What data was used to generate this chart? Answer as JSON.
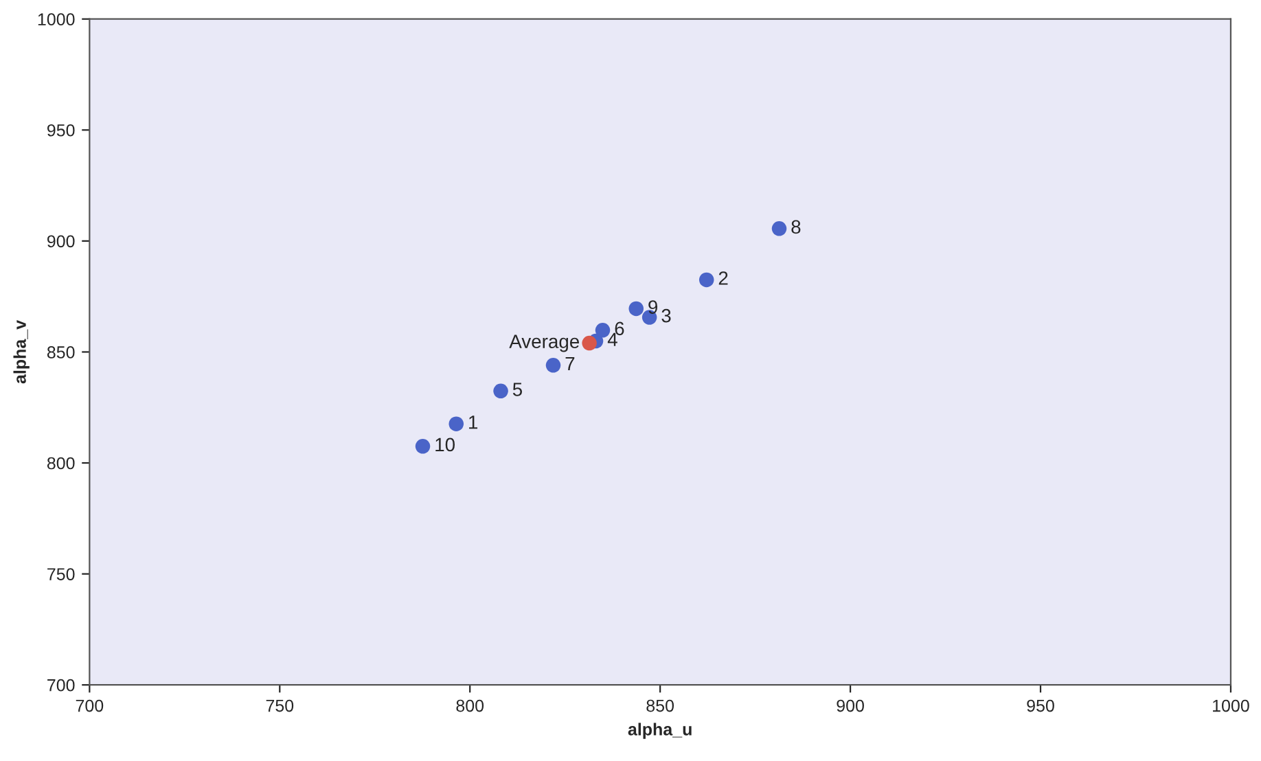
{
  "chart_data": {
    "type": "scatter",
    "xlabel": "alpha_u",
    "ylabel": "alpha_v",
    "xlim": [
      700,
      1000
    ],
    "xticks": [
      700,
      750,
      800,
      850,
      900,
      950,
      1000
    ],
    "ylim": [
      700,
      1000
    ],
    "yticks": [
      700,
      750,
      800,
      850,
      900,
      950,
      1000
    ],
    "grid": false,
    "marker": "circle",
    "series": [
      {
        "color": "#4a64c8",
        "x": [
          796.4,
          862.2,
          847.2,
          833.1,
          808.1,
          834.9,
          821.9,
          881.3,
          843.7,
          787.6
        ],
        "values": [
          817.6,
          882.5,
          865.6,
          854.9,
          832.4,
          859.8,
          844.0,
          905.6,
          869.5,
          807.5
        ]
      },
      {
        "name": "Average",
        "color": "#d9574a",
        "x": [
          831.4
        ],
        "values": [
          854.0
        ]
      }
    ],
    "annotations": [
      {
        "text": "1",
        "x": 796.4,
        "y": 817.6
      },
      {
        "text": "2",
        "x": 862.2,
        "y": 882.5
      },
      {
        "text": "3",
        "x": 847.2,
        "y": 865.6
      },
      {
        "text": "4",
        "x": 833.1,
        "y": 854.9
      },
      {
        "text": "5",
        "x": 808.1,
        "y": 832.4
      },
      {
        "text": "6",
        "x": 834.9,
        "y": 859.8
      },
      {
        "text": "7",
        "x": 821.9,
        "y": 844.0
      },
      {
        "text": "8",
        "x": 881.3,
        "y": 905.6
      },
      {
        "text": "9",
        "x": 843.7,
        "y": 869.5
      },
      {
        "text": "10",
        "x": 787.6,
        "y": 807.5
      }
    ]
  }
}
